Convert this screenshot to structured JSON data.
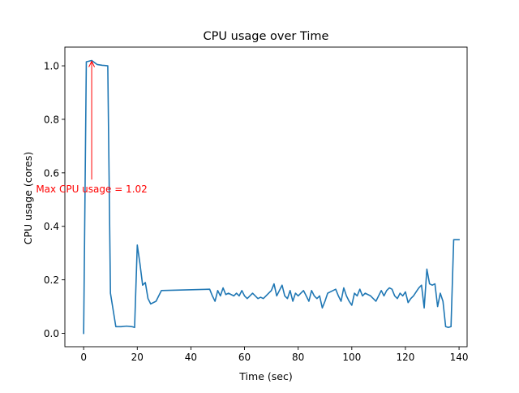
{
  "chart_data": {
    "type": "line",
    "title": "CPU usage over Time",
    "xlabel": "Time (sec)",
    "ylabel": "CPU usage (cores)",
    "xlim": [
      -7,
      143
    ],
    "ylim": [
      -0.05,
      1.07
    ],
    "xticks": [
      0,
      20,
      40,
      60,
      80,
      100,
      120,
      140
    ],
    "yticks": [
      0.0,
      0.2,
      0.4,
      0.6,
      0.8,
      1.0
    ],
    "grid": false,
    "line_color": "#1f77b4",
    "series": [
      {
        "x": [
          0,
          1,
          3,
          5,
          7,
          9,
          10,
          12,
          14,
          16,
          18,
          19,
          20,
          21,
          22,
          23,
          24,
          25,
          27,
          28,
          29,
          47,
          48,
          49,
          50,
          51,
          52,
          53,
          54,
          55,
          56,
          57,
          58,
          59,
          60,
          61,
          62,
          63,
          64,
          65,
          66,
          67,
          68,
          69,
          70,
          71,
          72,
          73,
          74,
          75,
          76,
          77,
          78,
          79,
          80,
          81,
          82,
          83,
          84,
          85,
          86,
          87,
          88,
          89,
          90,
          91,
          92,
          93,
          94,
          95,
          96,
          97,
          98,
          99,
          100,
          101,
          102,
          103,
          104,
          105,
          106,
          107,
          108,
          109,
          110,
          111,
          112,
          113,
          114,
          115,
          116,
          117,
          118,
          119,
          120,
          121,
          122,
          123,
          124,
          125,
          126,
          127,
          128,
          129,
          130,
          131,
          132,
          133,
          134,
          135,
          136,
          137,
          138,
          139,
          140
        ],
        "y": [
          0.0,
          1.015,
          1.02,
          1.005,
          1.002,
          1.0,
          0.15,
          0.025,
          0.025,
          0.027,
          0.025,
          0.022,
          0.33,
          0.26,
          0.18,
          0.19,
          0.13,
          0.11,
          0.12,
          0.14,
          0.16,
          0.165,
          0.14,
          0.12,
          0.16,
          0.14,
          0.17,
          0.145,
          0.15,
          0.145,
          0.14,
          0.15,
          0.14,
          0.16,
          0.14,
          0.13,
          0.14,
          0.15,
          0.14,
          0.13,
          0.135,
          0.13,
          0.14,
          0.15,
          0.16,
          0.185,
          0.14,
          0.16,
          0.18,
          0.14,
          0.13,
          0.16,
          0.12,
          0.15,
          0.14,
          0.15,
          0.16,
          0.14,
          0.12,
          0.16,
          0.14,
          0.13,
          0.14,
          0.095,
          0.12,
          0.15,
          0.155,
          0.16,
          0.165,
          0.14,
          0.12,
          0.17,
          0.14,
          0.12,
          0.105,
          0.15,
          0.14,
          0.165,
          0.14,
          0.15,
          0.145,
          0.14,
          0.13,
          0.12,
          0.14,
          0.16,
          0.14,
          0.16,
          0.17,
          0.165,
          0.14,
          0.13,
          0.15,
          0.14,
          0.155,
          0.115,
          0.13,
          0.14,
          0.155,
          0.17,
          0.18,
          0.095,
          0.24,
          0.185,
          0.18,
          0.185,
          0.1,
          0.15,
          0.12,
          0.025,
          0.022,
          0.025,
          0.35,
          0.35,
          0.35
        ]
      }
    ],
    "annotation": {
      "text": "Max CPU usage = 1.02",
      "color": "#ff0000",
      "point": [
        3,
        1.02
      ],
      "text_anchor_point": [
        3,
        0.575
      ]
    }
  }
}
